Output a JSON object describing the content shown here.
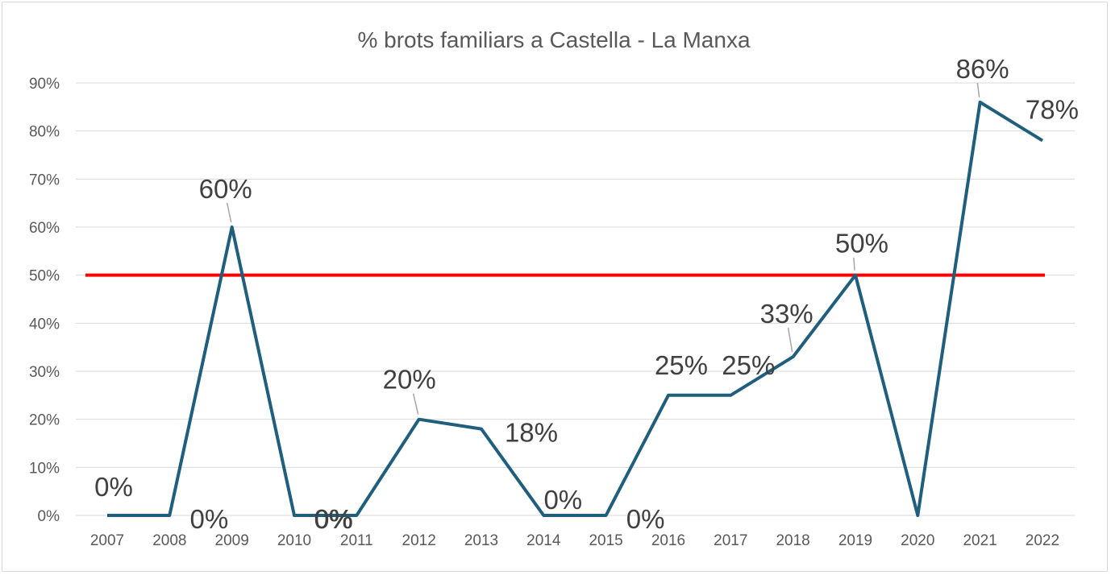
{
  "chart_data": {
    "type": "line",
    "title": "% brots familiars a Castella - La Manxa",
    "xlabel": "",
    "ylabel": "",
    "x": [
      "2007",
      "2008",
      "2009",
      "2010",
      "2011",
      "2012",
      "2013",
      "2014",
      "2015",
      "2016",
      "2017",
      "2018",
      "2019",
      "2020",
      "2021",
      "2022"
    ],
    "series": [
      {
        "values": [
          0,
          0,
          60,
          0,
          0,
          20,
          18,
          0,
          0,
          25,
          25,
          33,
          50,
          0,
          86,
          78
        ],
        "labels": [
          "0%",
          "0%",
          "60%",
          "0%",
          "0%",
          "20%",
          "18%",
          "0%",
          "0%",
          "25%",
          "25%",
          "33%",
          "50%",
          "",
          "86%",
          "78%"
        ],
        "color": "#1f5e7c"
      }
    ],
    "reference_line": {
      "value": 50,
      "color": "#ff0000"
    },
    "ylim": [
      0,
      90
    ],
    "yticks": [
      0,
      10,
      20,
      30,
      40,
      50,
      60,
      70,
      80,
      90
    ],
    "ytick_labels": [
      "0%",
      "10%",
      "20%",
      "30%",
      "40%",
      "50%",
      "60%",
      "70%",
      "80%",
      "90%"
    ],
    "grid": true,
    "legend": "none"
  }
}
